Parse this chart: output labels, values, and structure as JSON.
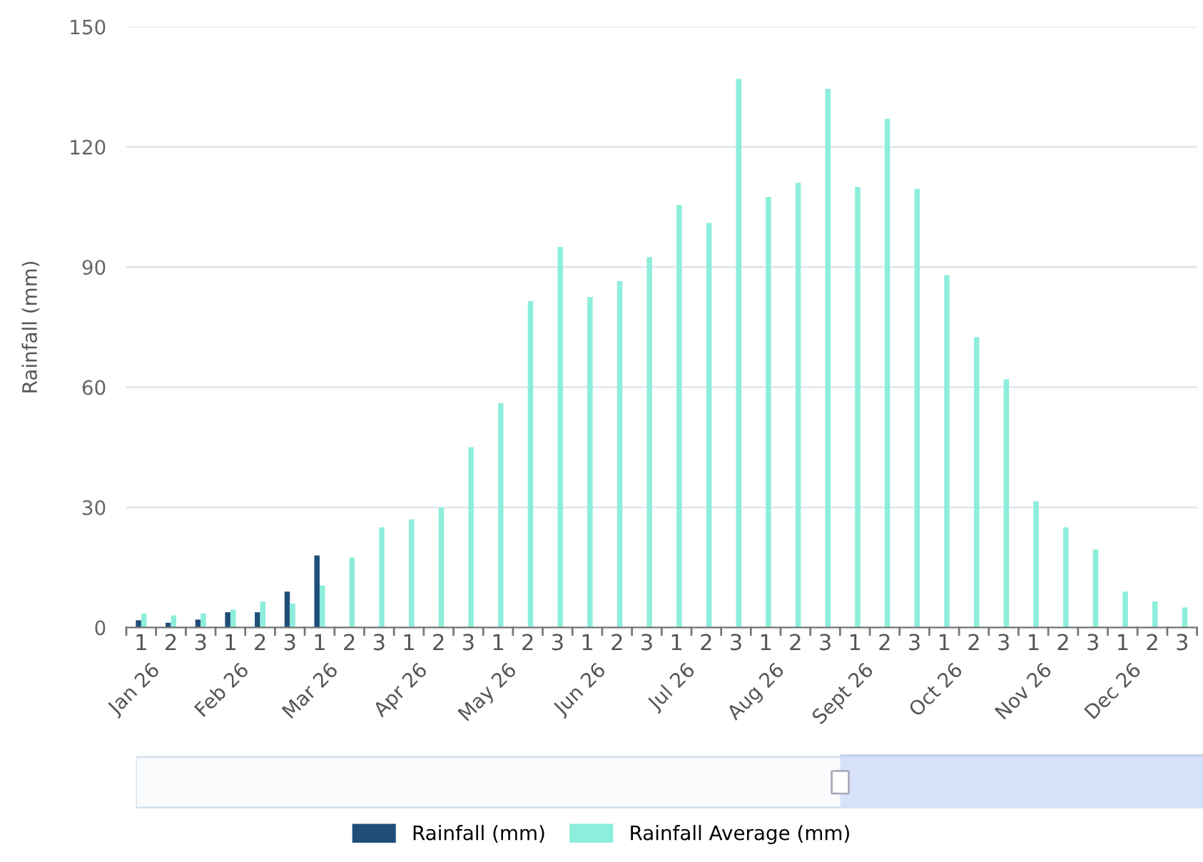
{
  "chart_data": {
    "type": "bar",
    "ylabel": "Rainfall (mm)",
    "categories": [
      "1",
      "2",
      "3",
      "1",
      "2",
      "3",
      "1",
      "2",
      "3",
      "1",
      "2",
      "3",
      "1",
      "2",
      "3",
      "1",
      "2",
      "3",
      "1",
      "2",
      "3",
      "1",
      "2",
      "3",
      "1",
      "2",
      "3",
      "1",
      "2",
      "3",
      "1",
      "2",
      "3",
      "1",
      "2",
      "3"
    ],
    "annotations": [
      "Jan 26",
      "Feb 26",
      "Mar 26",
      "Apr 26",
      "May 26",
      "Jun 26",
      "Jul 26",
      "Aug 26",
      "Sept 26",
      "Oct 26",
      "Nov 26",
      "Dec 26"
    ],
    "series": [
      {
        "name": "Rainfall (mm)",
        "color": "#1f4e79",
        "values": [
          1.8,
          1.2,
          2,
          3.8,
          3.8,
          9,
          18,
          null,
          null,
          null,
          null,
          null,
          null,
          null,
          null,
          null,
          null,
          null,
          null,
          null,
          null,
          null,
          null,
          null,
          null,
          null,
          null,
          null,
          null,
          null,
          null,
          null,
          null,
          null,
          null,
          null
        ]
      },
      {
        "name": "Rainfall Average (mm)",
        "color": "#8ceedb",
        "values": [
          3.5,
          3,
          3.5,
          4.5,
          6.5,
          6,
          10.5,
          17.5,
          25,
          27,
          30,
          45,
          56,
          81.5,
          95,
          82.5,
          86.5,
          92.5,
          105.5,
          101,
          137,
          107.5,
          111,
          134.5,
          110,
          127,
          109.5,
          88,
          72.5,
          62,
          31.5,
          25,
          19.5,
          9,
          6.5,
          5
        ]
      }
    ],
    "ylim": [
      0,
      150
    ],
    "yticks": [
      0,
      30,
      60,
      90,
      120,
      150
    ],
    "grid": "y",
    "legend": "bottom"
  }
}
